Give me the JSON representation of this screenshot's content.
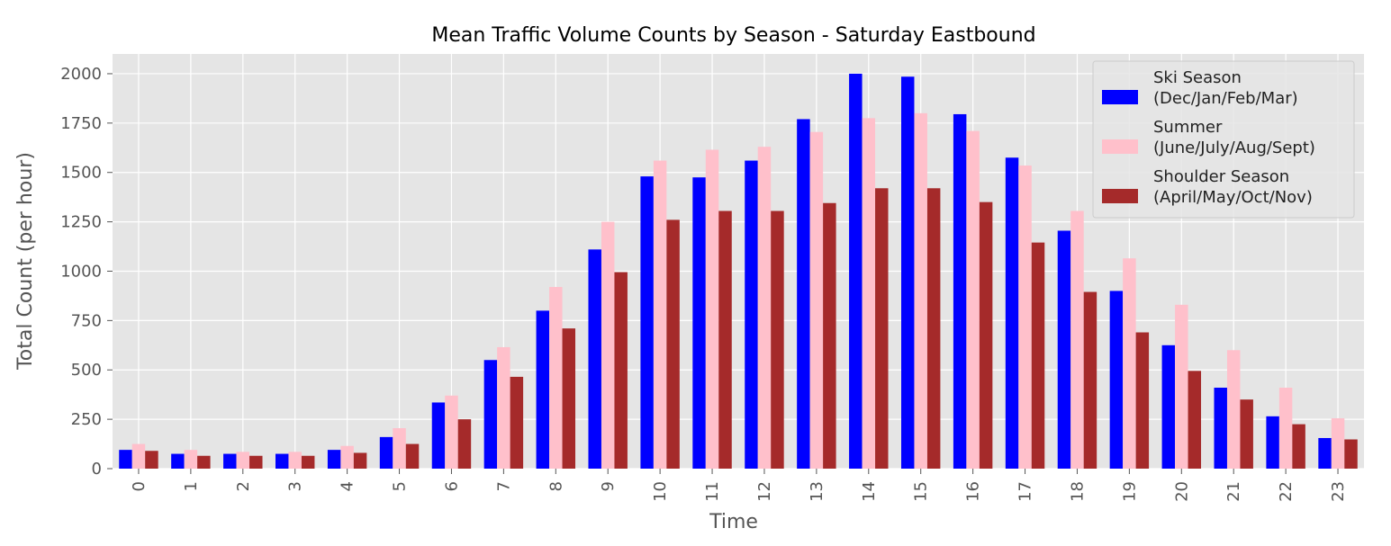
{
  "chart_data": {
    "type": "bar",
    "title": "Mean Traffic Volume Counts by Season - Saturday Eastbound",
    "xlabel": "Time",
    "ylabel": "Total Count (per hour)",
    "ylim": [
      0,
      2100
    ],
    "yticks": [
      0,
      250,
      500,
      750,
      1000,
      1250,
      1500,
      1750,
      2000
    ],
    "grid": true,
    "legend_position": "top-right",
    "categories": [
      "0",
      "1",
      "2",
      "3",
      "4",
      "5",
      "6",
      "7",
      "8",
      "9",
      "10",
      "11",
      "12",
      "13",
      "14",
      "15",
      "16",
      "17",
      "18",
      "19",
      "20",
      "21",
      "22",
      "23"
    ],
    "series": [
      {
        "name": "Ski Season\n (Dec/Jan/Feb/Mar)",
        "legend_lines": [
          "Ski Season",
          " (Dec/Jan/Feb/Mar)"
        ],
        "color": "#0000ff",
        "values": [
          95,
          75,
          75,
          75,
          95,
          160,
          335,
          550,
          800,
          1110,
          1480,
          1475,
          1560,
          1770,
          2000,
          1985,
          1795,
          1575,
          1205,
          900,
          625,
          410,
          265,
          155
        ]
      },
      {
        "name": "Summer\n (June/July/Aug/Sept)",
        "legend_lines": [
          "Summer",
          " (June/July/Aug/Sept)"
        ],
        "color": "#ffc0cb",
        "values": [
          125,
          95,
          85,
          85,
          115,
          205,
          370,
          615,
          920,
          1250,
          1560,
          1615,
          1630,
          1705,
          1775,
          1800,
          1710,
          1535,
          1305,
          1065,
          830,
          600,
          410,
          255
        ]
      },
      {
        "name": "Shoulder Season\n (April/May/Oct/Nov)",
        "legend_lines": [
          "Shoulder Season",
          " (April/May/Oct/Nov)"
        ],
        "color": "#a52a2a",
        "values": [
          90,
          65,
          65,
          65,
          80,
          125,
          250,
          465,
          710,
          995,
          1260,
          1305,
          1305,
          1345,
          1420,
          1420,
          1350,
          1145,
          895,
          690,
          495,
          350,
          225,
          148
        ]
      }
    ],
    "colors": {
      "plot_background": "#e5e5e5",
      "grid": "#ffffff",
      "text": "#555555"
    }
  }
}
